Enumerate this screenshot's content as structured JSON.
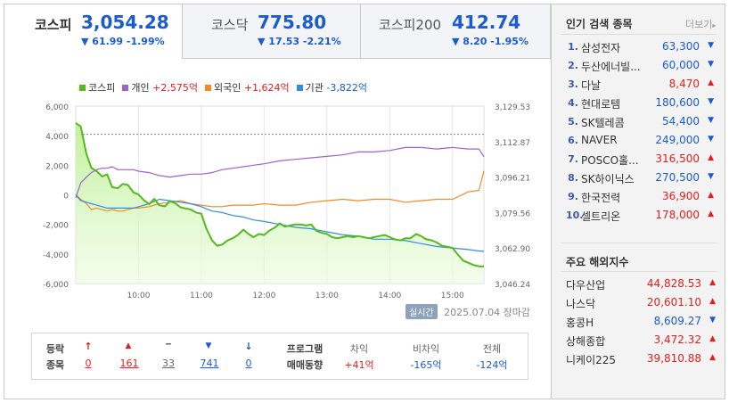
{
  "tabs": [
    {
      "name": "코스피",
      "value": "3,054.28",
      "change": "▼ 61.99 -1.99%",
      "active": true
    },
    {
      "name": "코스닥",
      "value": "775.80",
      "change": "▼ 17.53 -2.21%",
      "active": false
    },
    {
      "name": "코스피200",
      "value": "412.74",
      "change": "▼ 8.20 -1.95%",
      "active": false
    }
  ],
  "legend": [
    {
      "name": "코스피",
      "change": "",
      "color": "#53b91e"
    },
    {
      "name": "개인",
      "change": "+2,575억",
      "color": "#9e63c8"
    },
    {
      "name": "외국인",
      "change": "+1,624억",
      "color": "#ef8b29"
    },
    {
      "name": "기관",
      "change": "-3,822억",
      "color": "#2f8ee0"
    }
  ],
  "status": {
    "badge": "실시간",
    "date": "2025.07.04",
    "text": "장마감"
  },
  "breadth": {
    "label_top": "등락",
    "label_bottom": "종목",
    "items": [
      {
        "icon": "↑",
        "value": "0",
        "type": "up"
      },
      {
        "icon": "▲",
        "value": "161",
        "type": "up"
      },
      {
        "icon": "━",
        "value": "33",
        "type": "flat"
      },
      {
        "icon": "▼",
        "value": "741",
        "type": "down"
      },
      {
        "icon": "↓",
        "value": "0",
        "type": "down"
      }
    ],
    "program_label_top": "프로그램",
    "program_label_bottom": "매매동향",
    "program": [
      {
        "label": "차익",
        "value": "+41억",
        "type": "up"
      },
      {
        "label": "비차익",
        "value": "-165억",
        "type": "down"
      },
      {
        "label": "전체",
        "value": "-124억",
        "type": "down"
      }
    ]
  },
  "popular": {
    "title": "인기 검색 종목",
    "more": "더보기",
    "items": [
      {
        "rank": "1.",
        "name": "삼성전자",
        "price": "63,300",
        "dir": "down"
      },
      {
        "rank": "2.",
        "name": "두산에너빌...",
        "price": "60,000",
        "dir": "down"
      },
      {
        "rank": "3.",
        "name": "다날",
        "price": "8,470",
        "dir": "up"
      },
      {
        "rank": "4.",
        "name": "현대로템",
        "price": "180,600",
        "dir": "down"
      },
      {
        "rank": "5.",
        "name": "SK텔레콤",
        "price": "54,400",
        "dir": "down"
      },
      {
        "rank": "6.",
        "name": "NAVER",
        "price": "249,000",
        "dir": "down"
      },
      {
        "rank": "7.",
        "name": "POSCO홀...",
        "price": "316,500",
        "dir": "up"
      },
      {
        "rank": "8.",
        "name": "SK하이닉스",
        "price": "270,500",
        "dir": "down"
      },
      {
        "rank": "9.",
        "name": "한국전력",
        "price": "36,900",
        "dir": "up"
      },
      {
        "rank": "10.",
        "name": "셀트리온",
        "price": "178,000",
        "dir": "up"
      }
    ]
  },
  "overseas": {
    "title": "주요 해외지수",
    "items": [
      {
        "name": "다우산업",
        "price": "44,828.53",
        "dir": "up"
      },
      {
        "name": "나스닥",
        "price": "20,601.10",
        "dir": "up"
      },
      {
        "name": "홍콩H",
        "price": "8,609.27",
        "dir": "down"
      },
      {
        "name": "상해종합",
        "price": "3,472.32",
        "dir": "up"
      },
      {
        "name": "니케이225",
        "price": "39,810.88",
        "dir": "up"
      }
    ]
  },
  "chart_data": {
    "type": "line",
    "left_axis": {
      "ticks": [
        "6,000",
        "4,000",
        "2,000",
        "0",
        "-2,000",
        "-4,000",
        "-6,000"
      ],
      "values": [
        6000,
        4000,
        2000,
        0,
        -2000,
        -4000,
        -6000
      ],
      "range": [
        -6000,
        6000
      ]
    },
    "right_axis": {
      "ticks": [
        "3,129.53",
        "3,112.87",
        "3,096.21",
        "3,079.56",
        "3,062.90",
        "3,046.24"
      ],
      "values": [
        3129.53,
        3112.87,
        3096.21,
        3079.56,
        3062.9,
        3046.24
      ],
      "range": [
        3046.24,
        3129.53
      ]
    },
    "reference_line": 3116.27,
    "x_ticks": [
      "10:00",
      "11:00",
      "12:00",
      "13:00",
      "14:00",
      "15:00"
    ],
    "x_tick_hours": [
      10,
      11,
      12,
      13,
      14,
      15
    ],
    "x_range": [
      9.0,
      15.5
    ],
    "series": [
      {
        "name": "코스피",
        "axis": "right",
        "color": "#53b91e",
        "fill": true,
        "x": [
          9.0,
          9.08,
          9.17,
          9.25,
          9.33,
          9.42,
          9.5,
          9.58,
          9.67,
          9.75,
          9.83,
          9.92,
          10.0,
          10.08,
          10.17,
          10.25,
          10.33,
          10.42,
          10.5,
          10.58,
          10.67,
          10.75,
          10.83,
          10.92,
          11.0,
          11.08,
          11.17,
          11.25,
          11.33,
          11.42,
          11.5,
          11.58,
          11.67,
          11.75,
          11.83,
          11.92,
          12.0,
          12.08,
          12.17,
          12.25,
          12.33,
          12.42,
          12.5,
          12.58,
          12.67,
          12.75,
          12.83,
          12.92,
          13.0,
          13.08,
          13.17,
          13.25,
          13.33,
          13.42,
          13.5,
          13.58,
          13.67,
          13.75,
          13.83,
          13.92,
          14.0,
          14.08,
          14.17,
          14.25,
          14.33,
          14.42,
          14.5,
          14.58,
          14.67,
          14.75,
          14.83,
          14.92,
          15.0,
          15.08,
          15.17,
          15.25,
          15.33,
          15.42,
          15.5
        ],
        "values": [
          3121.6,
          3120.0,
          3107.0,
          3100.5,
          3099.0,
          3096.5,
          3097.5,
          3091.5,
          3091.0,
          3093.0,
          3092.5,
          3089.0,
          3088.0,
          3085.5,
          3083.5,
          3086.0,
          3083.0,
          3082.5,
          3085.0,
          3084.0,
          3082.0,
          3081.5,
          3081.0,
          3079.5,
          3079.0,
          3072.0,
          3066.5,
          3064.0,
          3064.5,
          3066.5,
          3067.5,
          3069.0,
          3071.5,
          3069.5,
          3068.0,
          3069.5,
          3069.0,
          3071.0,
          3072.5,
          3074.5,
          3073.0,
          3073.5,
          3074.0,
          3074.0,
          3073.5,
          3074.0,
          3071.0,
          3070.0,
          3069.5,
          3068.0,
          3067.5,
          3068.0,
          3068.5,
          3068.0,
          3068.5,
          3068.0,
          3067.5,
          3068.0,
          3068.5,
          3069.0,
          3068.0,
          3067.0,
          3066.5,
          3067.5,
          3067.5,
          3069.5,
          3068.5,
          3067.0,
          3066.5,
          3065.5,
          3064.0,
          3063.5,
          3063.0,
          3060.0,
          3057.0,
          3056.0,
          3055.0,
          3054.3,
          3054.28
        ]
      },
      {
        "name": "개인",
        "axis": "left",
        "color": "#9e63c8",
        "x": [
          9.0,
          9.08,
          9.17,
          9.25,
          9.33,
          9.42,
          9.5,
          9.58,
          9.67,
          9.75,
          9.83,
          9.92,
          10.0,
          10.17,
          10.33,
          10.5,
          10.67,
          10.83,
          11.0,
          11.17,
          11.33,
          11.5,
          11.67,
          11.83,
          12.0,
          12.25,
          12.5,
          12.75,
          13.0,
          13.25,
          13.5,
          13.75,
          14.0,
          14.25,
          14.5,
          14.75,
          15.0,
          15.25,
          15.42,
          15.5
        ],
        "values": [
          -200,
          800,
          1200,
          1500,
          1700,
          1800,
          1800,
          1900,
          1700,
          1700,
          1700,
          1700,
          1600,
          1500,
          1300,
          1200,
          1300,
          1400,
          1400,
          1500,
          1700,
          1800,
          1900,
          2000,
          2100,
          2300,
          2400,
          2500,
          2600,
          2700,
          2900,
          2900,
          3000,
          3200,
          3200,
          3100,
          3200,
          3100,
          3100,
          2575
        ]
      },
      {
        "name": "외국인",
        "axis": "left",
        "color": "#ef8b29",
        "x": [
          9.0,
          9.08,
          9.17,
          9.25,
          9.33,
          9.42,
          9.5,
          9.58,
          9.67,
          9.75,
          9.83,
          9.92,
          10.0,
          10.17,
          10.33,
          10.5,
          10.67,
          10.83,
          11.0,
          11.17,
          11.33,
          11.5,
          11.67,
          11.83,
          12.0,
          12.25,
          12.5,
          12.75,
          13.0,
          13.25,
          13.5,
          13.75,
          14.0,
          14.25,
          14.5,
          14.75,
          15.0,
          15.25,
          15.42,
          15.5
        ],
        "values": [
          0,
          -300,
          -600,
          -1000,
          -900,
          -1000,
          -1100,
          -1000,
          -1100,
          -1100,
          -1000,
          -900,
          -900,
          -800,
          -600,
          -500,
          -400,
          -600,
          -700,
          -800,
          -800,
          -700,
          -700,
          -700,
          -600,
          -700,
          -700,
          -500,
          -400,
          -300,
          -400,
          -300,
          -300,
          -500,
          -400,
          -300,
          -300,
          200,
          300,
          1624
        ]
      },
      {
        "name": "기관",
        "axis": "left",
        "color": "#2f8ee0",
        "x": [
          9.0,
          9.08,
          9.17,
          9.25,
          9.33,
          9.42,
          9.5,
          9.58,
          9.67,
          9.75,
          9.83,
          9.92,
          10.0,
          10.17,
          10.33,
          10.5,
          10.67,
          10.83,
          11.0,
          11.17,
          11.33,
          11.5,
          11.67,
          11.83,
          12.0,
          12.25,
          12.5,
          12.75,
          13.0,
          13.25,
          13.5,
          13.75,
          14.0,
          14.25,
          14.5,
          14.75,
          15.0,
          15.25,
          15.42,
          15.5
        ],
        "values": [
          0,
          -400,
          -500,
          -600,
          -700,
          -800,
          -900,
          -900,
          -900,
          -900,
          -900,
          -900,
          -800,
          -600,
          -300,
          -400,
          -500,
          -600,
          -800,
          -1100,
          -1200,
          -1400,
          -1500,
          -1700,
          -1800,
          -2000,
          -2200,
          -2300,
          -2500,
          -2700,
          -2800,
          -3000,
          -3000,
          -3100,
          -3300,
          -3500,
          -3600,
          -3700,
          -3800,
          -3822
        ]
      }
    ]
  }
}
